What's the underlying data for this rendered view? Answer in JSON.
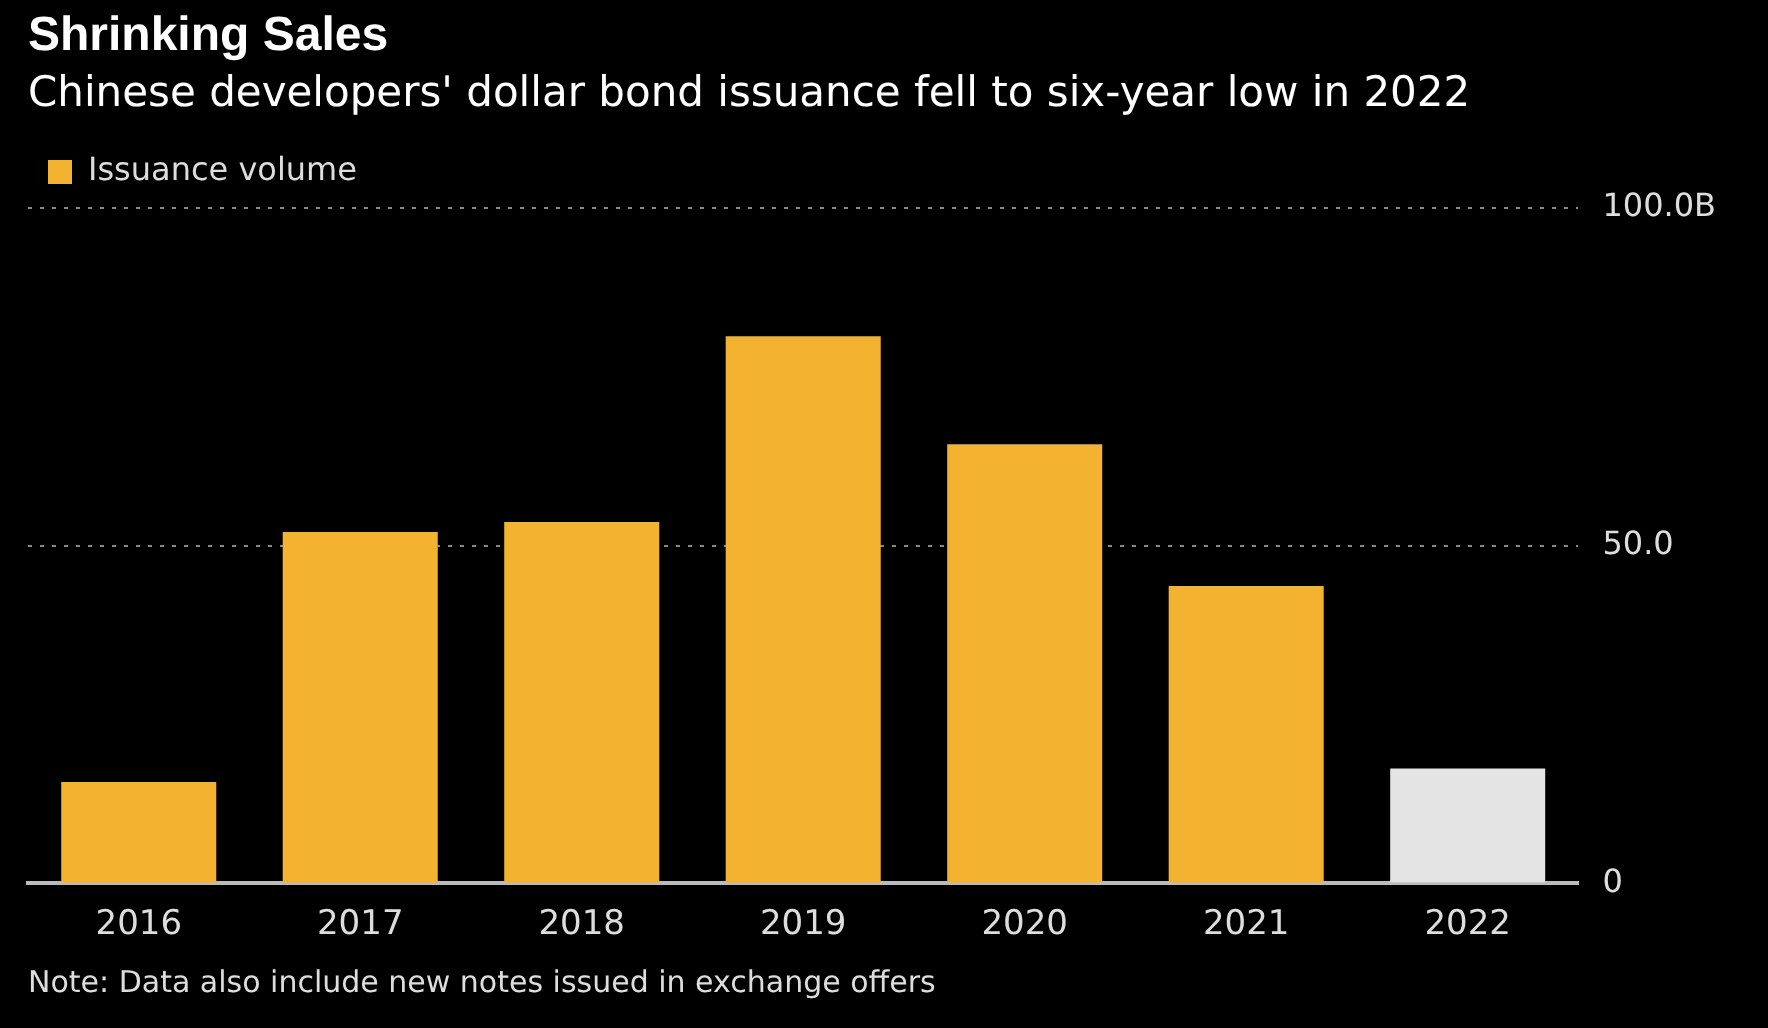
{
  "chart_data": {
    "type": "bar",
    "title": "Shrinking Sales",
    "subtitle": "Chinese developers' dollar bond issuance fell to six-year low in 2022",
    "categories": [
      "2016",
      "2017",
      "2018",
      "2019",
      "2020",
      "2021",
      "2022"
    ],
    "series": [
      {
        "name": "Issuance volume",
        "color": "#f3b22f",
        "colors": [
          "#f3b22f",
          "#f3b22f",
          "#f3b22f",
          "#f3b22f",
          "#f3b22f",
          "#f3b22f",
          "#e4e4e4"
        ],
        "values": [
          15,
          52,
          53.5,
          81,
          65,
          44,
          17
        ]
      }
    ],
    "ylim": [
      0,
      100
    ],
    "yticks": [
      0,
      {
        "value": 50,
        "label": "50.0"
      },
      {
        "value": 100,
        "label": "100.0B"
      }
    ],
    "grid": "y",
    "legend": "top left",
    "annotations": [
      "Note: Data also include new notes issued in exchange offers"
    ]
  }
}
